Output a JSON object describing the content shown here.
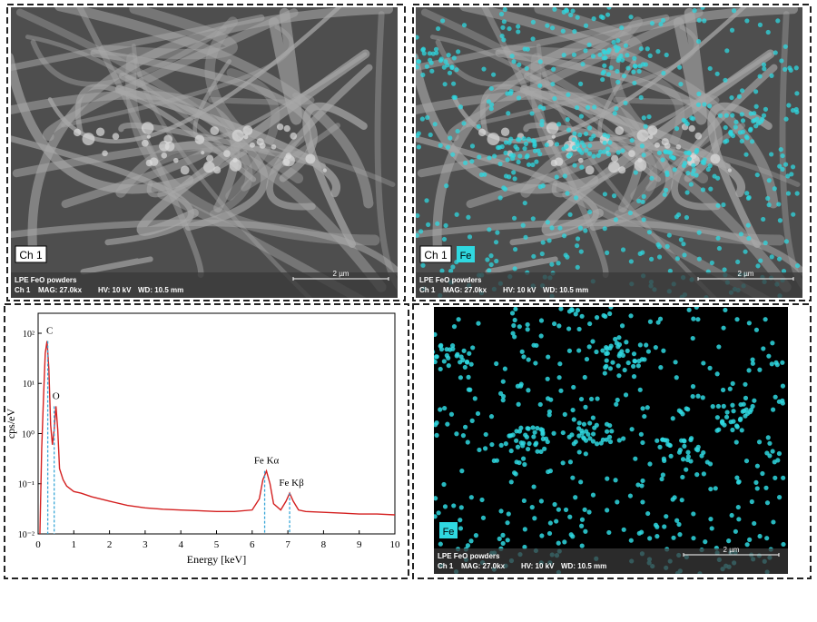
{
  "panels": {
    "sem": {
      "channel": "Ch 1",
      "sample": "LPE FeO powders",
      "info_channel": "Ch 1",
      "mag": "MAG: 27.0kx",
      "hv": "HV: 10 kV",
      "wd": "WD: 10.5 mm",
      "scale": "2 µm"
    },
    "map": {
      "element": "Fe"
    }
  },
  "chart_data": {
    "type": "line",
    "x": [
      0.05,
      0.1,
      0.15,
      0.2,
      0.25,
      0.3,
      0.35,
      0.4,
      0.45,
      0.5,
      0.55,
      0.6,
      0.7,
      0.8,
      1.0,
      1.2,
      1.5,
      2.0,
      2.5,
      3.0,
      3.5,
      4.0,
      4.5,
      5.0,
      5.5,
      6.0,
      6.2,
      6.3,
      6.4,
      6.5,
      6.6,
      6.8,
      6.95,
      7.05,
      7.15,
      7.3,
      7.5,
      8.0,
      8.5,
      9.0,
      9.5,
      10.0
    ],
    "values": [
      0.01,
      0.5,
      5,
      40,
      70,
      20,
      1.5,
      0.6,
      1.2,
      3.5,
      1.2,
      0.2,
      0.12,
      0.09,
      0.07,
      0.065,
      0.055,
      0.045,
      0.037,
      0.033,
      0.031,
      0.03,
      0.029,
      0.028,
      0.028,
      0.03,
      0.05,
      0.12,
      0.18,
      0.1,
      0.04,
      0.03,
      0.045,
      0.065,
      0.045,
      0.03,
      0.028,
      0.027,
      0.026,
      0.025,
      0.025,
      0.024
    ],
    "color": "#d42020",
    "xlim": [
      0,
      10
    ],
    "ylim": [
      0.01,
      250
    ],
    "log_y": true,
    "xticks": [
      0,
      1,
      2,
      3,
      4,
      5,
      6,
      7,
      8,
      9,
      10
    ],
    "yticks": [
      {
        "value": 0.01,
        "label": "10⁻²"
      },
      {
        "value": 0.1,
        "label": "10⁻¹"
      },
      {
        "value": 1,
        "label": "10⁰"
      },
      {
        "value": 10,
        "label": "10¹"
      },
      {
        "value": 100,
        "label": "10²"
      }
    ],
    "xlabel": "Energy [keV]",
    "ylabel": "cps/eV",
    "peaks": [
      {
        "label": "C",
        "x": 0.27,
        "y": 70
      },
      {
        "label": "O",
        "x": 0.45,
        "y": 3.5
      },
      {
        "label": "Fe Kα",
        "x": 6.35,
        "y": 0.18
      },
      {
        "label": "Fe Kβ",
        "x": 7.05,
        "y": 0.065
      }
    ],
    "peak_line_color": "#3aa7d8"
  }
}
